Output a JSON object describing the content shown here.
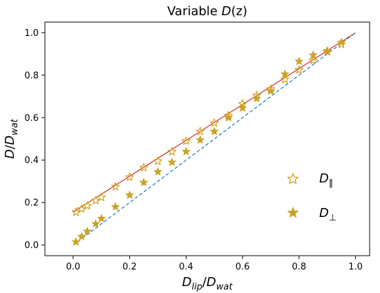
{
  "chart_data": {
    "type": "scatter",
    "title": {
      "pre": "Variable ",
      "var": "D",
      "post": "(z)"
    },
    "xlabel": {
      "main": "D",
      "sub": "lip",
      "sep": "/",
      "main2": "D",
      "sub2": "wat"
    },
    "ylabel": {
      "main": "D",
      "sep": "/",
      "main2": "D",
      "sub2": "wat"
    },
    "xlim": [
      -0.1,
      1.05
    ],
    "ylim": [
      -0.05,
      1.05
    ],
    "xticks": [
      0.0,
      0.2,
      0.4,
      0.6,
      0.8,
      1.0
    ],
    "xtick_labels": [
      "0.0",
      "0.2",
      "0.4",
      "0.6",
      "0.8",
      "1.0"
    ],
    "yticks": [
      0.0,
      0.2,
      0.4,
      0.6,
      0.8,
      1.0
    ],
    "ytick_labels": [
      "0.0",
      "0.2",
      "0.4",
      "0.6",
      "0.8",
      "1.0"
    ],
    "grid": false,
    "legend_position": "right",
    "series": [
      {
        "name": {
          "main": "D",
          "sub": "∥"
        },
        "marker": "open-star",
        "color": "#d4a017",
        "x": [
          0.01,
          0.03,
          0.05,
          0.08,
          0.1,
          0.15,
          0.2,
          0.25,
          0.3,
          0.35,
          0.4,
          0.45,
          0.5,
          0.55,
          0.6,
          0.65,
          0.7,
          0.75,
          0.8,
          0.85,
          0.9,
          0.95
        ],
        "y": [
          0.155,
          0.17,
          0.185,
          0.21,
          0.225,
          0.275,
          0.32,
          0.365,
          0.395,
          0.44,
          0.49,
          0.535,
          0.575,
          0.61,
          0.665,
          0.705,
          0.735,
          0.78,
          0.825,
          0.87,
          0.91,
          0.945
        ]
      },
      {
        "name": {
          "main": "D",
          "sub": "⊥"
        },
        "marker": "filled-star",
        "color": "#c9a227",
        "x": [
          0.01,
          0.03,
          0.05,
          0.08,
          0.1,
          0.15,
          0.2,
          0.25,
          0.3,
          0.35,
          0.4,
          0.45,
          0.5,
          0.55,
          0.6,
          0.65,
          0.7,
          0.75,
          0.8,
          0.85,
          0.9,
          0.95
        ],
        "y": [
          0.015,
          0.04,
          0.065,
          0.1,
          0.125,
          0.18,
          0.235,
          0.295,
          0.345,
          0.39,
          0.44,
          0.495,
          0.535,
          0.6,
          0.645,
          0.69,
          0.725,
          0.805,
          0.865,
          0.895,
          0.915,
          0.955
        ]
      }
    ],
    "fit_lines": [
      {
        "color": "#d62728",
        "style": "solid",
        "x": [
          0.0,
          1.0
        ],
        "y": [
          0.155,
          1.0
        ]
      },
      {
        "color": "#1f77b4",
        "style": "dashed",
        "x": [
          0.0,
          1.0
        ],
        "y": [
          0.0,
          1.0
        ]
      }
    ]
  }
}
